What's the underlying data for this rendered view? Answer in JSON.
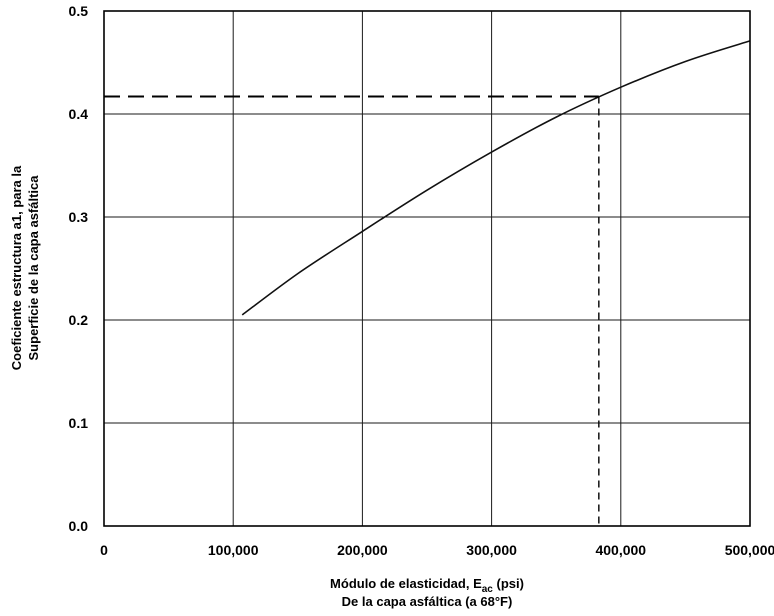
{
  "chart_data": {
    "type": "line",
    "title": "",
    "xlabel": {
      "line1_prefix": "Módulo de elasticidad, E",
      "line1_subscript": "ac",
      "line1_suffix": " (psi)",
      "line2": "De la capa asfáltica (a 68°F)"
    },
    "ylabel": {
      "line1": "Coeficiente estructura a1, para la",
      "line2": "Superficie de la capa asfáltica"
    },
    "xlim": [
      0,
      500000
    ],
    "ylim": [
      0,
      0.5
    ],
    "x_ticks": [
      0,
      100000,
      200000,
      300000,
      400000,
      500000
    ],
    "x_tick_labels": [
      "0",
      "100,000",
      "200,000",
      "300,000",
      "400,000",
      "500,000"
    ],
    "y_ticks": [
      0,
      0.1,
      0.2,
      0.3,
      0.4,
      0.5
    ],
    "y_tick_labels": [
      "0.0",
      "0.1",
      "0.2",
      "0.3",
      "0.4",
      "0.5"
    ],
    "grid": true,
    "series": [
      {
        "x": [
          107000,
          150000,
          200000,
          250000,
          300000,
          350000,
          400000,
          450000,
          500000
        ],
        "y": [
          0.205,
          0.245,
          0.286,
          0.326,
          0.363,
          0.397,
          0.426,
          0.451,
          0.471
        ]
      }
    ],
    "guide": {
      "x": 383000,
      "y": 0.417
    }
  }
}
